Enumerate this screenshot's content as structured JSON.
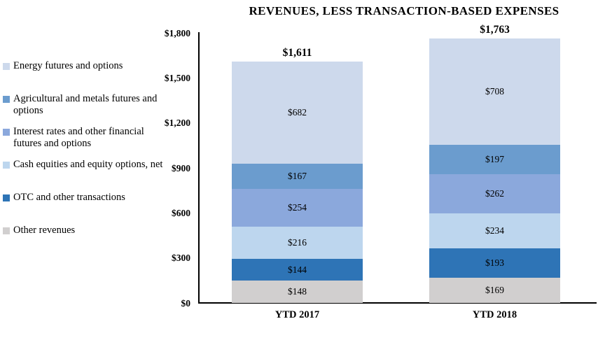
{
  "chart_data": {
    "type": "bar",
    "subtype": "stacked",
    "title": "REVENUES, LESS TRANSACTION-BASED EXPENSES",
    "categories": [
      "YTD 2017",
      "YTD 2018"
    ],
    "series": [
      {
        "name": "Other revenues",
        "values": [
          148,
          169
        ],
        "color": "#d1cfcf"
      },
      {
        "name": "OTC and other transactions",
        "values": [
          144,
          193
        ],
        "color": "#2e74b6"
      },
      {
        "name": "Cash equities and equity options, net",
        "values": [
          216,
          234
        ],
        "color": "#bdd6ee"
      },
      {
        "name": "Interest rates and other financial futures and options",
        "values": [
          254,
          262
        ],
        "color": "#8ba8dc"
      },
      {
        "name": "Agricultural and metals futures and options",
        "values": [
          167,
          197
        ],
        "color": "#6b9cce"
      },
      {
        "name": "Energy futures and options",
        "values": [
          682,
          708
        ],
        "color": "#cdd9ec"
      }
    ],
    "segment_labels": [
      [
        "$148",
        "$144",
        "$216",
        "$254",
        "$167",
        "$682"
      ],
      [
        "$169",
        "$193",
        "$234",
        "$262",
        "$197",
        "$708"
      ]
    ],
    "totals": [
      1611,
      1763
    ],
    "total_labels": [
      "$1,611",
      "$1,763"
    ],
    "y_axis": {
      "max": 1800,
      "ticks": [
        0,
        300,
        600,
        900,
        1200,
        1500,
        1800
      ],
      "tick_labels": [
        "$0",
        "$300",
        "$600",
        "$900",
        "$1,200",
        "$1,500",
        "$1,800"
      ]
    },
    "legend": {
      "position": "left",
      "items": [
        "Energy futures and options",
        "Agricultural and metals futures and options",
        "Interest rates and other financial futures and options",
        "Cash equities and equity options, net",
        "OTC and other transactions",
        "Other revenues"
      ]
    },
    "grid": false,
    "background": "#ffffff"
  }
}
